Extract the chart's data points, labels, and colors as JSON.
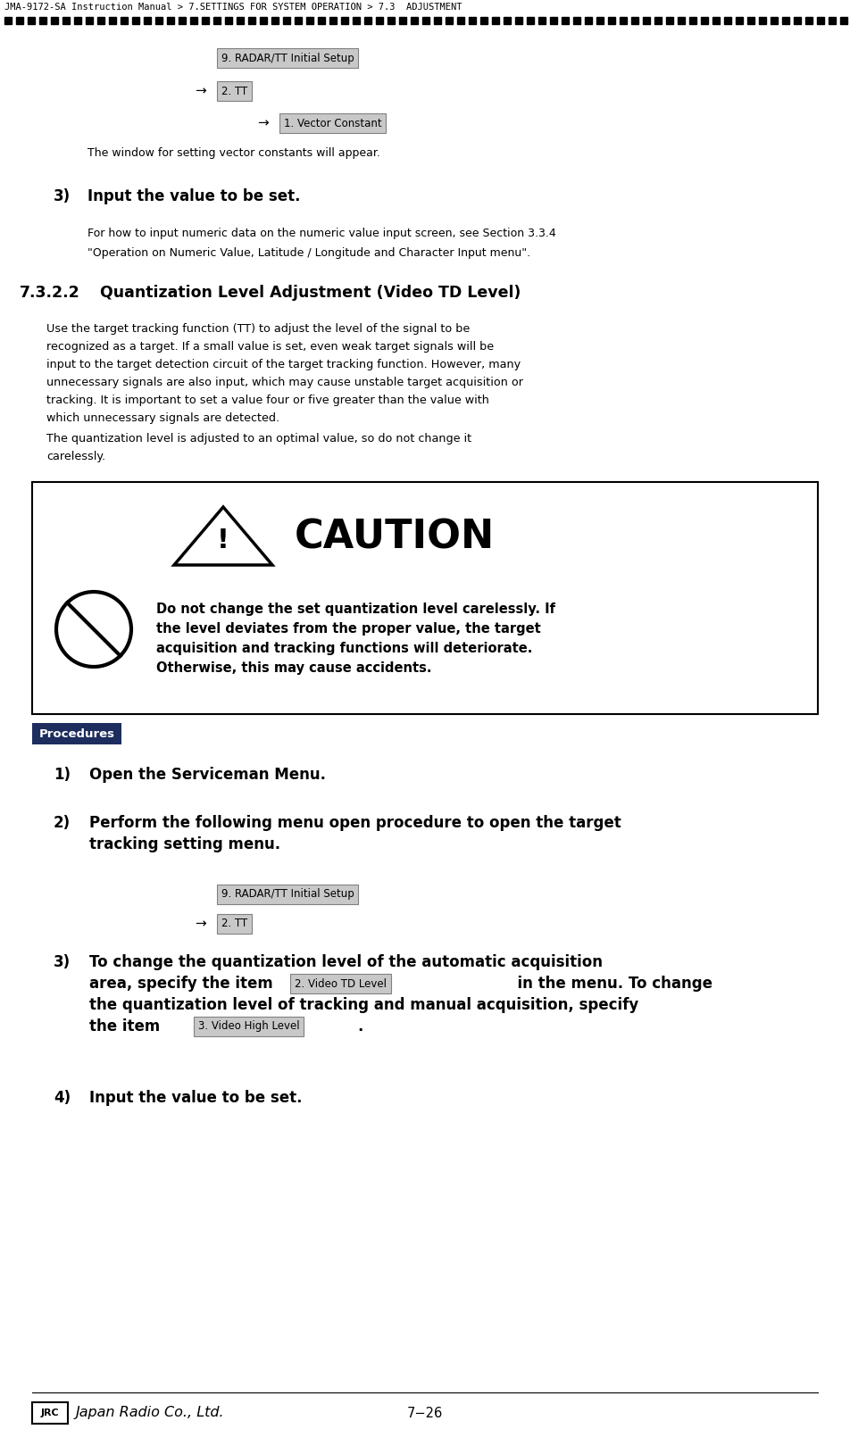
{
  "page_title": "JMA-9172-SA Instruction Manual > 7.SETTINGS FOR SYSTEM OPERATION > 7.3  ADJUSTMENT",
  "background_color": "#ffffff",
  "arrow": "→",
  "btn1_top": "9. RADAR/TT Initial Setup",
  "btn2_top": "2. TT",
  "btn3_top": "1. Vector Constant",
  "body_text_after_arrow": "The window for setting vector constants will appear.",
  "step3_title": "Input the value to be set.",
  "step3_body_line1": "For how to input numeric data on the numeric value input screen, see Section 3.3.4",
  "step3_body_line2": "\"Operation on Numeric Value, Latitude / Longitude and Character Input menu\".",
  "section_number": "7.3.2.2",
  "section_title": "Quantization Level Adjustment (Video TD Level)",
  "quant_body_lines": [
    "Use the target tracking function (TT) to adjust the level of the signal to be",
    "recognized as a target. If a small value is set, even weak target signals will be",
    "input to the target detection circuit of the target tracking function. However, many",
    "unnecessary signals are also input, which may cause unstable target acquisition or",
    "tracking. It is important to set a value four or five greater than the value with",
    "which unnecessary signals are detected."
  ],
  "quant_body2_line1": "The quantization level is adjusted to an optimal value, so do not change it",
  "quant_body2_line2": "carelessly.",
  "caution_title": "CAUTION",
  "caution_lines": [
    "Do not change the set quantization level carelessly. If",
    "the level deviates from the proper value, the target",
    "acquisition and tracking functions will deteriorate.",
    "Otherwise, this may cause accidents."
  ],
  "procedures_label": "Procedures",
  "proc1_title": "Open the Serviceman Menu.",
  "proc2_line1": "Perform the following menu open procedure to open the target",
  "proc2_line2": "tracking setting menu.",
  "btn1_bot": "9. RADAR/TT Initial Setup",
  "btn2_bot": "2. TT",
  "proc3_line1": "To change the quantization level of the automatic acquisition",
  "proc3_line2_before": "area, specify the item",
  "proc3_btn1": "2. Video TD Level",
  "proc3_line2_after": "in the menu. To change",
  "proc3_line3": "the quantization level of tracking and manual acquisition, specify",
  "proc3_line4_before": "the item",
  "proc3_btn2": "3. Video High Level",
  "proc3_line4_after": ".",
  "proc4_title": "Input the value to be set.",
  "footer_page": "7−26",
  "footer_company": "Japan Radio Co., Ltd.",
  "footer_logo": "JRC"
}
